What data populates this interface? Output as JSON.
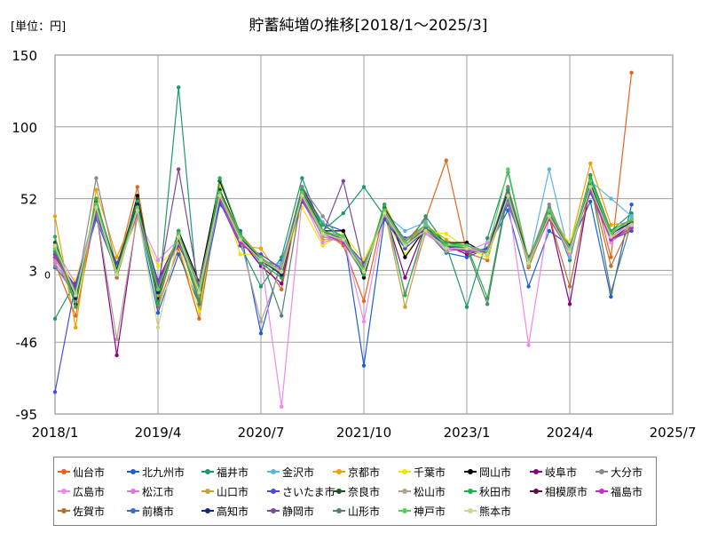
{
  "chart_data": {
    "type": "line",
    "title": "貯蓄純増の推移[2018/1～2025/3]",
    "unit_label": "[単位：円]",
    "xlabel": "",
    "ylabel": "",
    "ylim": [
      -95,
      150
    ],
    "yticks": [
      "150",
      "100",
      "52",
      "3",
      "-46",
      "-95"
    ],
    "zero_label": "0",
    "xticks": [
      "2018/1",
      "2019/4",
      "2020/7",
      "2021/10",
      "2023/1",
      "2024/4",
      "2025/7"
    ],
    "grid": true,
    "legend_position": "bottom",
    "x_note": "Quarterly periods 2018 Q1 – 2025 Q1 (29 points)",
    "periods": [
      "2018/1",
      "2018/2",
      "2018/3",
      "2018/4",
      "2019/1",
      "2019/2",
      "2019/3",
      "2019/4",
      "2020/1",
      "2020/2",
      "2020/3",
      "2020/4",
      "2021/1",
      "2021/2",
      "2021/3",
      "2021/4",
      "2022/1",
      "2022/2",
      "2022/3",
      "2022/4",
      "2023/1",
      "2023/2",
      "2023/3",
      "2023/4",
      "2024/1",
      "2024/2",
      "2024/3",
      "2024/4",
      "2025/1"
    ],
    "series": [
      {
        "name": "仙台市",
        "color": "#e8641e",
        "values": [
          8,
          -28,
          44,
          5,
          60,
          -22,
          18,
          -30,
          56,
          25,
          12,
          -10,
          60,
          30,
          20,
          -18,
          45,
          22,
          38,
          78,
          15,
          10,
          60,
          5,
          40,
          15,
          68,
          12,
          138
        ]
      },
      {
        "name": "北九州市",
        "color": "#1f5fd6",
        "values": [
          5,
          -10,
          38,
          2,
          42,
          -26,
          14,
          -20,
          48,
          30,
          -40,
          10,
          50,
          35,
          30,
          -62,
          38,
          25,
          30,
          15,
          12,
          18,
          44,
          -8,
          30,
          20,
          50,
          -15,
          48
        ]
      },
      {
        "name": "福井市",
        "color": "#1a9a6e",
        "values": [
          -30,
          -5,
          42,
          0,
          45,
          -18,
          128,
          -25,
          58,
          20,
          -8,
          12,
          66,
          30,
          42,
          60,
          40,
          18,
          40,
          20,
          -22,
          25,
          70,
          10,
          46,
          10,
          68,
          30,
          42
        ]
      },
      {
        "name": "金沢市",
        "color": "#5ab4e6",
        "values": [
          14,
          -20,
          48,
          6,
          50,
          -8,
          22,
          -15,
          56,
          28,
          6,
          8,
          58,
          36,
          22,
          5,
          42,
          30,
          36,
          18,
          20,
          14,
          58,
          8,
          72,
          12,
          64,
          52,
          40
        ]
      },
      {
        "name": "京都市",
        "color": "#f0a000",
        "values": [
          40,
          -36,
          58,
          12,
          46,
          -12,
          28,
          -14,
          54,
          20,
          18,
          -2,
          60,
          24,
          24,
          2,
          48,
          20,
          34,
          24,
          16,
          16,
          60,
          12,
          44,
          20,
          76,
          34,
          36
        ]
      },
      {
        "name": "千葉市",
        "color": "#f2e600",
        "values": [
          10,
          -4,
          44,
          8,
          38,
          6,
          20,
          -25,
          60,
          14,
          14,
          4,
          46,
          20,
          28,
          10,
          40,
          14,
          30,
          28,
          18,
          12,
          52,
          10,
          38,
          22,
          60,
          26,
          30
        ]
      },
      {
        "name": "岡山市",
        "color": "#000000",
        "values": [
          20,
          -20,
          50,
          0,
          54,
          -16,
          30,
          -5,
          64,
          28,
          10,
          0,
          58,
          30,
          30,
          -2,
          46,
          12,
          32,
          22,
          22,
          14,
          56,
          6,
          42,
          18,
          62,
          28,
          36
        ]
      },
      {
        "name": "岐阜市",
        "color": "#8b008b",
        "values": [
          12,
          -8,
          44,
          -55,
          42,
          -4,
          26,
          -12,
          56,
          24,
          6,
          -6,
          60,
          34,
          26,
          4,
          44,
          -2,
          34,
          20,
          14,
          18,
          56,
          8,
          40,
          -20,
          62,
          24,
          34
        ]
      },
      {
        "name": "大分市",
        "color": "#8a8a8a",
        "values": [
          6,
          -14,
          66,
          4,
          48,
          -6,
          24,
          -8,
          58,
          26,
          10,
          6,
          60,
          40,
          22,
          0,
          44,
          24,
          34,
          20,
          18,
          16,
          60,
          10,
          48,
          14,
          64,
          28,
          38
        ]
      },
      {
        "name": "広島市",
        "color": "#ee88ee",
        "values": [
          18,
          -6,
          46,
          6,
          40,
          10,
          24,
          -18,
          52,
          22,
          12,
          -90,
          52,
          22,
          26,
          -32,
          42,
          -12,
          28,
          18,
          16,
          22,
          52,
          -48,
          40,
          14,
          60,
          22,
          34
        ]
      },
      {
        "name": "松江市",
        "color": "#dd77dd",
        "values": [
          8,
          -12,
          40,
          4,
          44,
          -10,
          28,
          -10,
          54,
          26,
          10,
          4,
          56,
          26,
          24,
          6,
          40,
          20,
          32,
          20,
          20,
          14,
          54,
          10,
          42,
          16,
          62,
          26,
          36
        ]
      },
      {
        "name": "山口市",
        "color": "#c8a040",
        "values": [
          16,
          -18,
          52,
          2,
          48,
          -14,
          26,
          -12,
          58,
          28,
          12,
          0,
          56,
          30,
          24,
          2,
          44,
          -22,
          30,
          22,
          18,
          14,
          56,
          6,
          40,
          18,
          64,
          30,
          34
        ]
      },
      {
        "name": "さいたま市",
        "color": "#4a4ad6",
        "values": [
          -80,
          -6,
          40,
          8,
          42,
          -4,
          20,
          -6,
          50,
          20,
          14,
          4,
          50,
          28,
          24,
          8,
          38,
          18,
          30,
          20,
          16,
          18,
          48,
          12,
          38,
          20,
          56,
          24,
          30
        ]
      },
      {
        "name": "奈良市",
        "color": "#1e4d2b",
        "values": [
          22,
          -16,
          50,
          4,
          52,
          -12,
          28,
          -8,
          58,
          26,
          10,
          2,
          58,
          30,
          26,
          2,
          46,
          22,
          34,
          20,
          20,
          16,
          58,
          10,
          44,
          18,
          64,
          28,
          36
        ]
      },
      {
        "name": "松山市",
        "color": "#b0a090",
        "values": [
          10,
          -10,
          44,
          -44,
          40,
          -8,
          22,
          -6,
          54,
          24,
          -32,
          6,
          52,
          26,
          22,
          6,
          42,
          20,
          30,
          16,
          18,
          16,
          50,
          10,
          40,
          16,
          58,
          24,
          32
        ]
      },
      {
        "name": "秋田市",
        "color": "#22b04a",
        "values": [
          26,
          -22,
          52,
          0,
          50,
          -20,
          30,
          -18,
          66,
          28,
          8,
          -2,
          58,
          34,
          26,
          0,
          48,
          -14,
          34,
          22,
          20,
          -16,
          58,
          8,
          44,
          18,
          66,
          30,
          38
        ]
      },
      {
        "name": "相模原市",
        "color": "#5a1040",
        "values": [
          14,
          -12,
          46,
          2,
          44,
          -8,
          24,
          -10,
          54,
          24,
          12,
          2,
          54,
          28,
          24,
          4,
          44,
          20,
          32,
          20,
          18,
          14,
          54,
          10,
          40,
          16,
          60,
          26,
          34
        ]
      },
      {
        "name": "福島市",
        "color": "#c030c0",
        "values": [
          12,
          -10,
          44,
          2,
          42,
          -8,
          26,
          -12,
          52,
          22,
          10,
          2,
          52,
          28,
          22,
          4,
          42,
          20,
          30,
          18,
          16,
          16,
          52,
          8,
          38,
          16,
          58,
          24,
          32
        ]
      },
      {
        "name": "佐賀市",
        "color": "#b87030",
        "values": [
          18,
          -14,
          48,
          -2,
          46,
          -12,
          26,
          -12,
          56,
          26,
          12,
          0,
          54,
          28,
          24,
          2,
          44,
          20,
          32,
          20,
          18,
          14,
          54,
          8,
          40,
          -8,
          62,
          6,
          36
        ]
      },
      {
        "name": "前橋市",
        "color": "#3a68c8",
        "values": [
          16,
          -12,
          46,
          2,
          44,
          -10,
          26,
          -10,
          54,
          24,
          10,
          2,
          54,
          28,
          24,
          4,
          42,
          20,
          30,
          18,
          18,
          14,
          52,
          8,
          40,
          16,
          60,
          26,
          34
        ]
      },
      {
        "name": "高知市",
        "color": "#10287a",
        "values": [
          20,
          -16,
          48,
          0,
          48,
          -12,
          28,
          -10,
          56,
          26,
          10,
          0,
          56,
          30,
          24,
          2,
          44,
          20,
          32,
          20,
          18,
          14,
          56,
          8,
          42,
          18,
          62,
          28,
          36
        ]
      },
      {
        "name": "静岡市",
        "color": "#7a4a9a",
        "values": [
          14,
          -10,
          44,
          2,
          44,
          -8,
          72,
          -10,
          54,
          24,
          10,
          2,
          54,
          28,
          64,
          4,
          42,
          20,
          30,
          18,
          18,
          14,
          54,
          8,
          40,
          16,
          60,
          26,
          34
        ]
      },
      {
        "name": "山形市",
        "color": "#5a8070",
        "values": [
          16,
          -14,
          46,
          0,
          46,
          -10,
          26,
          -20,
          56,
          26,
          12,
          -28,
          56,
          30,
          24,
          2,
          44,
          20,
          32,
          20,
          18,
          -20,
          56,
          8,
          42,
          18,
          64,
          -12,
          36
        ]
      },
      {
        "name": "神戸市",
        "color": "#58d058",
        "values": [
          18,
          -12,
          48,
          2,
          46,
          -10,
          28,
          -10,
          56,
          26,
          12,
          2,
          56,
          30,
          26,
          4,
          44,
          22,
          34,
          20,
          20,
          16,
          72,
          10,
          44,
          18,
          64,
          28,
          38
        ]
      },
      {
        "name": "熊本市",
        "color": "#c8d890",
        "values": [
          20,
          -14,
          46,
          0,
          44,
          -36,
          26,
          -12,
          54,
          24,
          10,
          2,
          54,
          28,
          24,
          2,
          42,
          20,
          30,
          18,
          18,
          14,
          54,
          8,
          40,
          16,
          60,
          26,
          34
        ]
      }
    ]
  }
}
